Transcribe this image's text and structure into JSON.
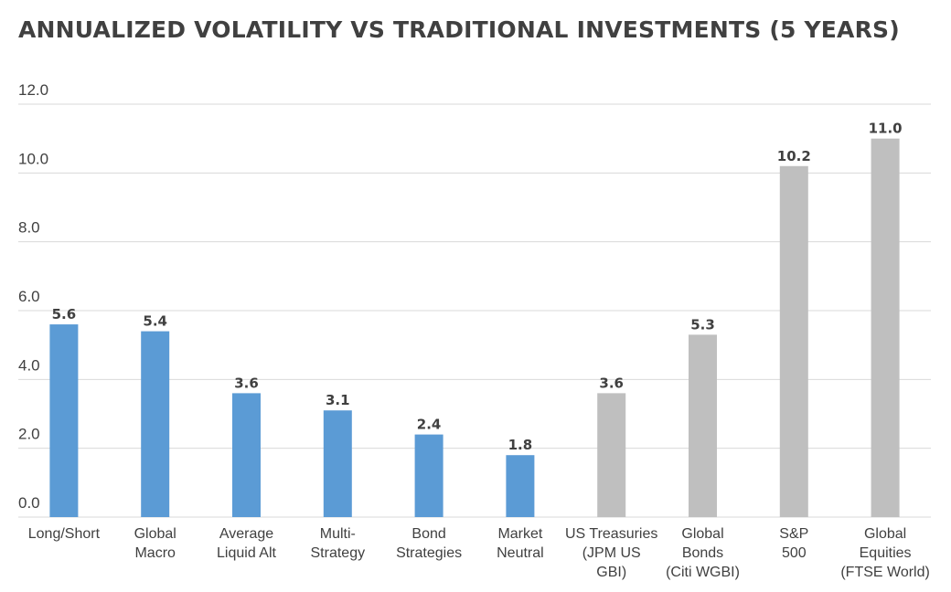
{
  "chart_data": {
    "type": "bar",
    "title": "ANNUALIZED VOLATILITY VS TRADITIONAL INVESTMENTS (5 YEARS)",
    "xlabel": "",
    "ylabel": "",
    "ylim": [
      0,
      12
    ],
    "grid": true,
    "yticks": [
      "0.0",
      "2.0",
      "4.0",
      "6.0",
      "8.0",
      "10.0",
      "12.0"
    ],
    "categories": [
      [
        "Long/Short"
      ],
      [
        "Global",
        "Macro"
      ],
      [
        "Average",
        "Liquid Alt"
      ],
      [
        "Multi-",
        "Strategy"
      ],
      [
        "Bond",
        "Strategies"
      ],
      [
        "Market",
        "Neutral"
      ],
      [
        "US Treasuries",
        "(JPM US",
        "GBI)"
      ],
      [
        "Global",
        "Bonds",
        "(Citi WGBI)"
      ],
      [
        "S&P",
        "500"
      ],
      [
        "Global",
        "Equities",
        "(FTSE World)"
      ]
    ],
    "values": [
      5.6,
      5.4,
      3.6,
      3.1,
      2.4,
      1.8,
      3.6,
      5.3,
      10.2,
      11.0
    ],
    "data_labels": [
      "5.6",
      "5.4",
      "3.6",
      "3.1",
      "2.4",
      "1.8",
      "3.6",
      "5.3",
      "10.2",
      "11.0"
    ],
    "bar_colors": [
      "#5b9bd5",
      "#5b9bd5",
      "#5b9bd5",
      "#5b9bd5",
      "#5b9bd5",
      "#5b9bd5",
      "#bfbfbf",
      "#bfbfbf",
      "#bfbfbf",
      "#bfbfbf"
    ]
  }
}
